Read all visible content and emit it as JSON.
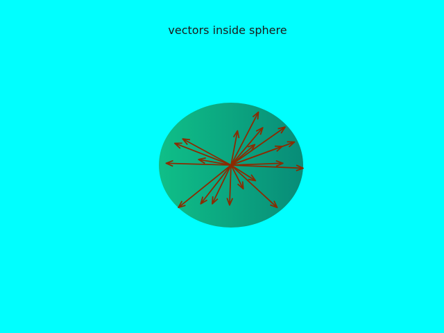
{
  "chart_data": {
    "type": "vector_field_3d",
    "title": "vectors inside sphere",
    "background_color": "#00ffff",
    "sphere": {
      "color_light": "#0fbf88",
      "color_dark": "#088c78"
    },
    "arrow_color": "#8b2a00",
    "origin": [
      0,
      0,
      0
    ],
    "vectors": [
      [
        0.38,
        0.0,
        0.85
      ],
      [
        0.09,
        0.0,
        0.55
      ],
      [
        0.75,
        0.0,
        0.61
      ],
      [
        0.44,
        0.0,
        0.6
      ],
      [
        0.88,
        0.0,
        0.37
      ],
      [
        0.71,
        0.0,
        0.3
      ],
      [
        0.33,
        0.0,
        0.33
      ],
      [
        0.72,
        0.0,
        0.03
      ],
      [
        1.0,
        0.0,
        -0.05
      ],
      [
        0.34,
        0.0,
        -0.25
      ],
      [
        0.17,
        0.0,
        -0.38
      ],
      [
        0.64,
        0.0,
        -0.68
      ],
      [
        -0.02,
        0.0,
        -0.64
      ],
      [
        -0.26,
        0.0,
        -0.62
      ],
      [
        -0.42,
        0.0,
        -0.62
      ],
      [
        -0.73,
        0.0,
        -0.68
      ],
      [
        -0.45,
        0.0,
        0.09
      ],
      [
        -0.9,
        0.0,
        0.03
      ],
      [
        -0.78,
        0.0,
        0.35
      ],
      [
        -0.67,
        0.0,
        0.42
      ]
    ]
  }
}
